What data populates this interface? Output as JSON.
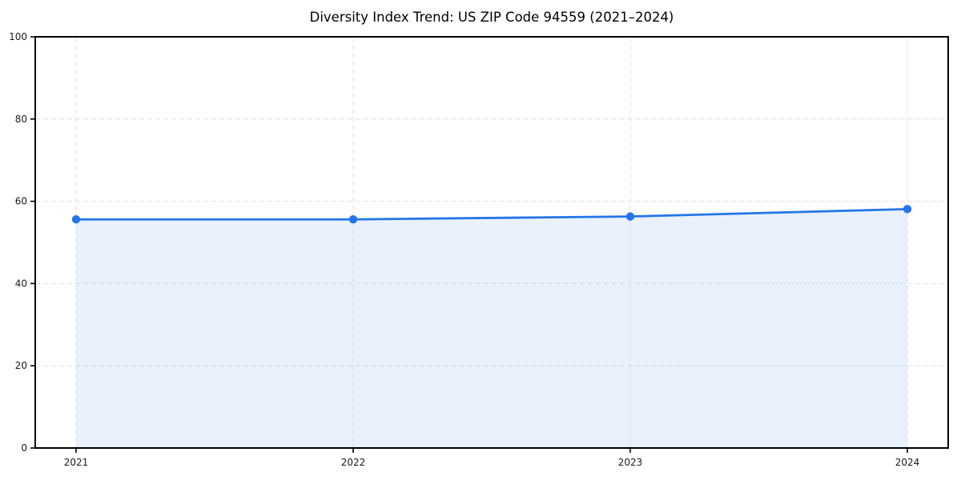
{
  "chart_data": {
    "type": "line",
    "title": "Diversity Index Trend: US ZIP Code 94559 (2021–2024)",
    "x": [
      "2021",
      "2022",
      "2023",
      "2024"
    ],
    "series": [
      {
        "name": "Diversity Index",
        "values": [
          55.6,
          55.6,
          56.3,
          58.1
        ]
      }
    ],
    "xlabel": "",
    "ylabel": "",
    "ylim": [
      0,
      100
    ],
    "yticks": [
      0,
      20,
      40,
      60,
      80,
      100
    ],
    "grid": "dashed-both-axes",
    "legend": "none",
    "area_fill": true,
    "marker": "circle",
    "colors": {
      "line": "#2575e8",
      "marker": "#2575e8",
      "area_fill_opacity": 0.1,
      "grid": "#e2e2e2",
      "spine": "#000000",
      "tick_label": "#1a1a1a",
      "background": "#ffffff"
    }
  }
}
